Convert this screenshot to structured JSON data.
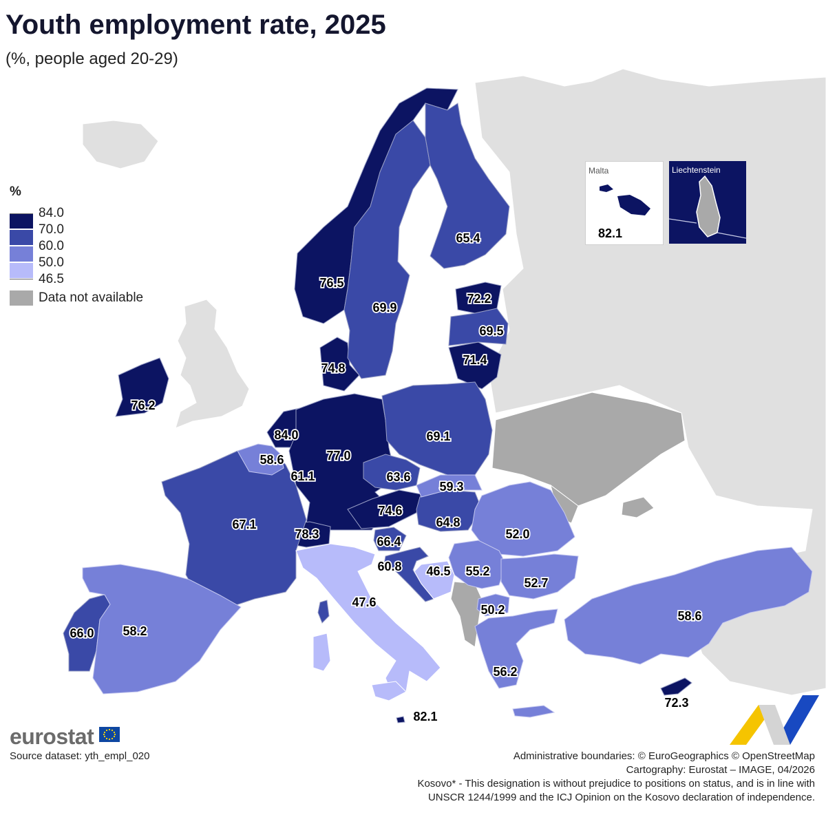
{
  "title": "Youth employment rate, 2025",
  "subtitle": "(%, people aged 20-29)",
  "legend": {
    "title": "%",
    "breaks": [
      "84.0",
      "70.0",
      "60.0",
      "50.0",
      "46.5"
    ],
    "colors": [
      "#0c1462",
      "#3a49a7",
      "#7680d8",
      "#b7bbfa"
    ],
    "na_color": "#a9a9a9",
    "na_label": "Data not available"
  },
  "countries": [
    {
      "name": "Norway",
      "value": "76.5"
    },
    {
      "name": "Sweden",
      "value": "69.9"
    },
    {
      "name": "Finland",
      "value": "65.4"
    },
    {
      "name": "Estonia",
      "value": "72.2"
    },
    {
      "name": "Latvia",
      "value": "69.5"
    },
    {
      "name": "Lithuania",
      "value": "71.4"
    },
    {
      "name": "Denmark",
      "value": "74.8"
    },
    {
      "name": "Ireland",
      "value": "76.2"
    },
    {
      "name": "Netherlands",
      "value": "84.0"
    },
    {
      "name": "Belgium",
      "value": "58.6"
    },
    {
      "name": "Luxembourg",
      "value": "61.1"
    },
    {
      "name": "Germany",
      "value": "77.0"
    },
    {
      "name": "Poland",
      "value": "69.1"
    },
    {
      "name": "Czechia",
      "value": "63.6"
    },
    {
      "name": "Slovakia",
      "value": "59.3"
    },
    {
      "name": "Austria",
      "value": "74.6"
    },
    {
      "name": "Hungary",
      "value": "64.8"
    },
    {
      "name": "Romania",
      "value": "52.0"
    },
    {
      "name": "France",
      "value": "67.1"
    },
    {
      "name": "Switzerland",
      "value": "78.3"
    },
    {
      "name": "Slovenia",
      "value": "66.4"
    },
    {
      "name": "Croatia",
      "value": "60.8"
    },
    {
      "name": "Bosnia and Herzegovina",
      "value": "46.5"
    },
    {
      "name": "Serbia",
      "value": "55.2"
    },
    {
      "name": "Bulgaria",
      "value": "52.7"
    },
    {
      "name": "North Macedonia",
      "value": "50.2"
    },
    {
      "name": "Italy",
      "value": "47.6"
    },
    {
      "name": "Spain",
      "value": "58.2"
    },
    {
      "name": "Portugal",
      "value": "66.0"
    },
    {
      "name": "Türkiye",
      "value": "58.6"
    },
    {
      "name": "Greece",
      "value": "56.2"
    },
    {
      "name": "Cyprus",
      "value": "72.3"
    },
    {
      "name": "Malta",
      "value": "82.1"
    }
  ],
  "insets": {
    "malta": {
      "label": "Malta",
      "value": "82.1"
    },
    "liechtenstein": {
      "label": "Liechtenstein"
    }
  },
  "footer": {
    "logo": "eurostat",
    "source": "Source dataset: yth_empl_020",
    "credits": [
      "Administrative boundaries: © EuroGeographics © OpenStreetMap",
      "Cartography: Eurostat – IMAGE, 04/2026",
      "Kosovo* - This designation is without prejudice to positions on status, and is in line with",
      "UNSCR 1244/1999 and the ICJ Opinion on the Kosovo declaration of independence."
    ]
  }
}
